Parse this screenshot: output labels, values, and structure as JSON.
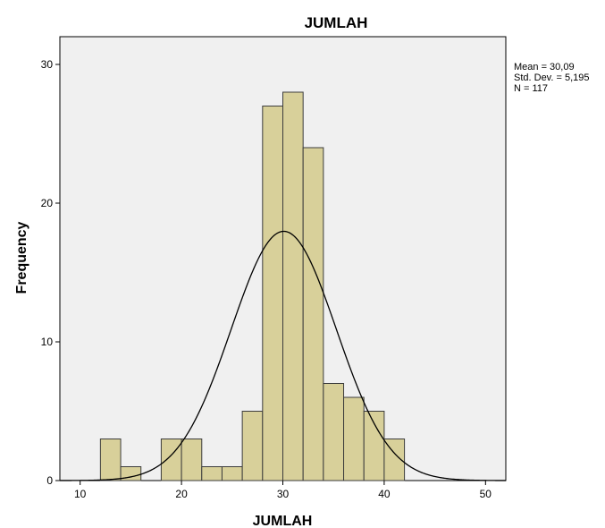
{
  "chart_data": {
    "type": "bar",
    "title": "JUMLAH",
    "xlabel": "JUMLAH",
    "ylabel": "Frequency",
    "xlim": [
      8,
      52
    ],
    "ylim": [
      0,
      32
    ],
    "x_ticks": [
      10,
      20,
      30,
      40,
      50
    ],
    "y_ticks": [
      0,
      10,
      20,
      30
    ],
    "bins": [
      {
        "start": 12,
        "end": 14,
        "count": 3
      },
      {
        "start": 14,
        "end": 16,
        "count": 1
      },
      {
        "start": 16,
        "end": 18,
        "count": 0
      },
      {
        "start": 18,
        "end": 20,
        "count": 3
      },
      {
        "start": 20,
        "end": 22,
        "count": 3
      },
      {
        "start": 22,
        "end": 24,
        "count": 1
      },
      {
        "start": 24,
        "end": 26,
        "count": 1
      },
      {
        "start": 26,
        "end": 28,
        "count": 5
      },
      {
        "start": 28,
        "end": 30,
        "count": 27
      },
      {
        "start": 30,
        "end": 32,
        "count": 28
      },
      {
        "start": 32,
        "end": 34,
        "count": 24
      },
      {
        "start": 34,
        "end": 36,
        "count": 7
      },
      {
        "start": 36,
        "end": 38,
        "count": 6
      },
      {
        "start": 38,
        "end": 40,
        "count": 5
      },
      {
        "start": 40,
        "end": 42,
        "count": 3
      }
    ],
    "normal_curve": {
      "mean": 30.09,
      "std": 5.195,
      "n": 117,
      "bin_width": 2
    },
    "stats_lines": [
      "Mean = 30,09",
      "Std. Dev. = 5,195",
      "N = 117"
    ],
    "colors": {
      "bar_fill": "#d8d09a",
      "bar_stroke": "#3c3c3c",
      "plot_bg": "#f0f0f0",
      "curve": "#000000"
    },
    "grid": false,
    "legend": "top-right"
  }
}
